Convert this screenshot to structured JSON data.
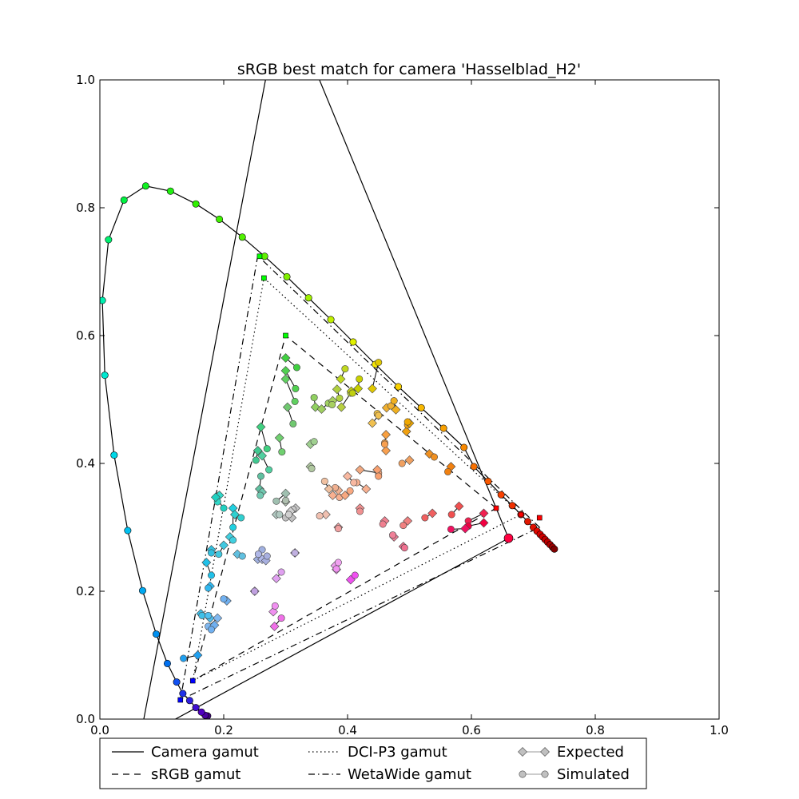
{
  "chart_data": {
    "type": "scatter",
    "title": "sRGB best match for camera 'Hasselblad_H2'",
    "xlabel": "",
    "ylabel": "",
    "xlim": [
      0.0,
      1.0
    ],
    "ylim": [
      0.0,
      1.0
    ],
    "x_ticks": [
      {
        "value": 0.0,
        "label": "0.0"
      },
      {
        "value": 0.2,
        "label": "0.2"
      },
      {
        "value": 0.4,
        "label": "0.4"
      },
      {
        "value": 0.6,
        "label": "0.6"
      },
      {
        "value": 0.8,
        "label": "0.8"
      },
      {
        "value": 1.0,
        "label": "1.0"
      }
    ],
    "y_ticks": [
      {
        "value": 0.0,
        "label": "0.0"
      },
      {
        "value": 0.2,
        "label": "0.2"
      },
      {
        "value": 0.4,
        "label": "0.4"
      },
      {
        "value": 0.6,
        "label": "0.6"
      },
      {
        "value": 0.8,
        "label": "0.8"
      },
      {
        "value": 1.0,
        "label": "1.0"
      }
    ],
    "grid": false,
    "legend_position": "bottom",
    "legend": [
      {
        "label": "Camera gamut",
        "style": "solid"
      },
      {
        "label": "sRGB gamut",
        "style": "dashed"
      },
      {
        "label": "DCI-P3 gamut",
        "style": "dotted"
      },
      {
        "label": "WetaWide gamut",
        "style": "dashdot"
      },
      {
        "label": "Expected",
        "style": "diamond-marker"
      },
      {
        "label": "Simulated",
        "style": "circle-marker"
      }
    ],
    "spectral_locus": [
      {
        "x": 0.174,
        "y": 0.005,
        "c": "#400080"
      },
      {
        "x": 0.17,
        "y": 0.006,
        "c": "#4a00a0"
      },
      {
        "x": 0.164,
        "y": 0.011,
        "c": "#5000c0"
      },
      {
        "x": 0.155,
        "y": 0.018,
        "c": "#4010d0"
      },
      {
        "x": 0.145,
        "y": 0.029,
        "c": "#3020e0"
      },
      {
        "x": 0.134,
        "y": 0.04,
        "c": "#2030e8"
      },
      {
        "x": 0.124,
        "y": 0.058,
        "c": "#1050f0"
      },
      {
        "x": 0.109,
        "y": 0.087,
        "c": "#0070f0"
      },
      {
        "x": 0.091,
        "y": 0.133,
        "c": "#0090f0"
      },
      {
        "x": 0.069,
        "y": 0.201,
        "c": "#00a8f0"
      },
      {
        "x": 0.045,
        "y": 0.295,
        "c": "#00c0f0"
      },
      {
        "x": 0.023,
        "y": 0.413,
        "c": "#00d8e8"
      },
      {
        "x": 0.008,
        "y": 0.538,
        "c": "#00e8d0"
      },
      {
        "x": 0.004,
        "y": 0.655,
        "c": "#00f0b0"
      },
      {
        "x": 0.014,
        "y": 0.75,
        "c": "#00f070"
      },
      {
        "x": 0.039,
        "y": 0.812,
        "c": "#00f040"
      },
      {
        "x": 0.074,
        "y": 0.834,
        "c": "#10f020"
      },
      {
        "x": 0.114,
        "y": 0.826,
        "c": "#20f010"
      },
      {
        "x": 0.155,
        "y": 0.806,
        "c": "#30f000"
      },
      {
        "x": 0.193,
        "y": 0.782,
        "c": "#40f000"
      },
      {
        "x": 0.23,
        "y": 0.754,
        "c": "#50f000"
      },
      {
        "x": 0.266,
        "y": 0.724,
        "c": "#60f000"
      },
      {
        "x": 0.302,
        "y": 0.692,
        "c": "#80f000"
      },
      {
        "x": 0.337,
        "y": 0.659,
        "c": "#a0f000"
      },
      {
        "x": 0.373,
        "y": 0.625,
        "c": "#c0f000"
      },
      {
        "x": 0.409,
        "y": 0.59,
        "c": "#e0f000"
      },
      {
        "x": 0.445,
        "y": 0.555,
        "c": "#f8e800"
      },
      {
        "x": 0.482,
        "y": 0.52,
        "c": "#f8d000"
      },
      {
        "x": 0.519,
        "y": 0.487,
        "c": "#f8b800"
      },
      {
        "x": 0.555,
        "y": 0.455,
        "c": "#f8a000"
      },
      {
        "x": 0.588,
        "y": 0.425,
        "c": "#f88800"
      },
      {
        "x": 0.604,
        "y": 0.395,
        "c": "#f87000"
      },
      {
        "x": 0.627,
        "y": 0.372,
        "c": "#f85800"
      },
      {
        "x": 0.648,
        "y": 0.351,
        "c": "#f84000"
      },
      {
        "x": 0.666,
        "y": 0.334,
        "c": "#f03000"
      },
      {
        "x": 0.68,
        "y": 0.32,
        "c": "#e82000"
      },
      {
        "x": 0.691,
        "y": 0.309,
        "c": "#e01800"
      },
      {
        "x": 0.7,
        "y": 0.3,
        "c": "#e01000"
      },
      {
        "x": 0.706,
        "y": 0.294,
        "c": "#e00800"
      },
      {
        "x": 0.711,
        "y": 0.289,
        "c": "#d80000"
      },
      {
        "x": 0.715,
        "y": 0.285,
        "c": "#d00000"
      },
      {
        "x": 0.719,
        "y": 0.281,
        "c": "#c80000"
      },
      {
        "x": 0.723,
        "y": 0.277,
        "c": "#c00000"
      },
      {
        "x": 0.727,
        "y": 0.273,
        "c": "#b00000"
      },
      {
        "x": 0.731,
        "y": 0.269,
        "c": "#a00000"
      },
      {
        "x": 0.734,
        "y": 0.266,
        "c": "#800000"
      }
    ],
    "camera_gamut": [
      [
        0.66,
        0.283
      ],
      [
        0.295,
        1.14
      ],
      [
        0.065,
        -0.03
      ]
    ],
    "srgb_gamut": [
      [
        0.64,
        0.33
      ],
      [
        0.3,
        0.6
      ],
      [
        0.15,
        0.06
      ]
    ],
    "dcip3_gamut": [
      [
        0.68,
        0.32
      ],
      [
        0.265,
        0.69
      ],
      [
        0.15,
        0.06
      ]
    ],
    "wetawide_gamut": [
      [
        0.71,
        0.3
      ],
      [
        0.255,
        0.725
      ],
      [
        0.13,
        0.03
      ]
    ],
    "primary_markers": [
      {
        "x": 0.64,
        "y": 0.33,
        "c": "#ff0000"
      },
      {
        "x": 0.3,
        "y": 0.6,
        "c": "#00ff00"
      },
      {
        "x": 0.15,
        "y": 0.06,
        "c": "#0000ff"
      },
      {
        "x": 0.68,
        "y": 0.32,
        "c": "#ff0000"
      },
      {
        "x": 0.265,
        "y": 0.69,
        "c": "#00ff00"
      },
      {
        "x": 0.71,
        "y": 0.315,
        "c": "#ff0000"
      },
      {
        "x": 0.258,
        "y": 0.724,
        "c": "#00ff00"
      },
      {
        "x": 0.13,
        "y": 0.03,
        "c": "#0000ff"
      }
    ],
    "camera_red_primary": {
      "x": 0.66,
      "y": 0.283,
      "c": "#ff0040"
    },
    "pairs": [
      {
        "ex": 0.3,
        "ey": 0.565,
        "sx": 0.318,
        "sy": 0.55,
        "c": "#40d040"
      },
      {
        "ex": 0.3,
        "ey": 0.545,
        "sx": 0.316,
        "sy": 0.517,
        "c": "#50d050"
      },
      {
        "ex": 0.3,
        "ey": 0.532,
        "sx": 0.315,
        "sy": 0.497,
        "c": "#60d060"
      },
      {
        "ex": 0.303,
        "ey": 0.488,
        "sx": 0.312,
        "sy": 0.462,
        "c": "#70c870"
      },
      {
        "ex": 0.348,
        "ey": 0.488,
        "sx": 0.346,
        "sy": 0.503,
        "c": "#90d060"
      },
      {
        "ex": 0.358,
        "ey": 0.485,
        "sx": 0.369,
        "sy": 0.494,
        "c": "#a0d060"
      },
      {
        "ex": 0.376,
        "ey": 0.498,
        "sx": 0.375,
        "sy": 0.492,
        "c": "#a8d060"
      },
      {
        "ex": 0.383,
        "ey": 0.516,
        "sx": 0.387,
        "sy": 0.502,
        "c": "#b0d040"
      },
      {
        "ex": 0.389,
        "ey": 0.532,
        "sx": 0.396,
        "sy": 0.548,
        "c": "#c0d820"
      },
      {
        "ex": 0.39,
        "ey": 0.488,
        "sx": 0.405,
        "sy": 0.51,
        "c": "#b8d040"
      },
      {
        "ex": 0.417,
        "ey": 0.517,
        "sx": 0.419,
        "sy": 0.532,
        "c": "#c8d000"
      },
      {
        "ex": 0.406,
        "ey": 0.513,
        "sx": 0.408,
        "sy": 0.51,
        "c": "#c0d010"
      },
      {
        "ex": 0.44,
        "ey": 0.517,
        "sx": 0.45,
        "sy": 0.558,
        "c": "#e0c800"
      },
      {
        "ex": 0.45,
        "ey": 0.475,
        "sx": 0.448,
        "sy": 0.478,
        "c": "#f0c040"
      },
      {
        "ex": 0.463,
        "ey": 0.487,
        "sx": 0.47,
        "sy": 0.49,
        "c": "#f0b030"
      },
      {
        "ex": 0.478,
        "ey": 0.484,
        "sx": 0.475,
        "sy": 0.498,
        "c": "#f0b020"
      },
      {
        "ex": 0.44,
        "ey": 0.463,
        "sx": 0.45,
        "sy": 0.475,
        "c": "#f0c050"
      },
      {
        "ex": 0.495,
        "ey": 0.45,
        "sx": 0.497,
        "sy": 0.46,
        "c": "#f0a010"
      },
      {
        "ex": 0.5,
        "ey": 0.463,
        "sx": 0.497,
        "sy": 0.465,
        "c": "#f0a800"
      },
      {
        "ex": 0.462,
        "ey": 0.445,
        "sx": 0.46,
        "sy": 0.432,
        "c": "#f8a040"
      },
      {
        "ex": 0.462,
        "ey": 0.42,
        "sx": 0.46,
        "sy": 0.43,
        "c": "#f8a050"
      },
      {
        "ex": 0.5,
        "ey": 0.405,
        "sx": 0.488,
        "sy": 0.4,
        "c": "#f0a060"
      },
      {
        "ex": 0.532,
        "ey": 0.415,
        "sx": 0.54,
        "sy": 0.41,
        "c": "#f09020"
      },
      {
        "ex": 0.567,
        "ey": 0.395,
        "sx": 0.562,
        "sy": 0.387,
        "c": "#f08010"
      },
      {
        "ex": 0.42,
        "ey": 0.39,
        "sx": 0.45,
        "sy": 0.385,
        "c": "#f0a880"
      },
      {
        "ex": 0.448,
        "ey": 0.39,
        "sx": 0.45,
        "sy": 0.38,
        "c": "#f8a070"
      },
      {
        "ex": 0.43,
        "ey": 0.36,
        "sx": 0.415,
        "sy": 0.37,
        "c": "#f8b090"
      },
      {
        "ex": 0.4,
        "ey": 0.38,
        "sx": 0.41,
        "sy": 0.37,
        "c": "#f8b8a0"
      },
      {
        "ex": 0.385,
        "ey": 0.358,
        "sx": 0.38,
        "sy": 0.362,
        "c": "#f0b090"
      },
      {
        "ex": 0.37,
        "ey": 0.36,
        "sx": 0.363,
        "sy": 0.372,
        "c": "#f0c0a0"
      },
      {
        "ex": 0.376,
        "ey": 0.35,
        "sx": 0.387,
        "sy": 0.347,
        "c": "#f8b090"
      },
      {
        "ex": 0.396,
        "ey": 0.35,
        "sx": 0.404,
        "sy": 0.357,
        "c": "#f8a880"
      },
      {
        "ex": 0.42,
        "ey": 0.33,
        "sx": 0.42,
        "sy": 0.325,
        "c": "#f09090"
      },
      {
        "ex": 0.365,
        "ey": 0.32,
        "sx": 0.355,
        "sy": 0.318,
        "c": "#f0c0b0"
      },
      {
        "ex": 0.385,
        "ey": 0.3,
        "sx": 0.385,
        "sy": 0.298,
        "c": "#f0a0a0"
      },
      {
        "ex": 0.46,
        "ey": 0.31,
        "sx": 0.457,
        "sy": 0.305,
        "c": "#f08090"
      },
      {
        "ex": 0.475,
        "ey": 0.285,
        "sx": 0.473,
        "sy": 0.288,
        "c": "#f08098"
      },
      {
        "ex": 0.49,
        "ey": 0.27,
        "sx": 0.492,
        "sy": 0.268,
        "c": "#f07090"
      },
      {
        "ex": 0.497,
        "ey": 0.31,
        "sx": 0.49,
        "sy": 0.303,
        "c": "#f08080"
      },
      {
        "ex": 0.537,
        "ey": 0.322,
        "sx": 0.525,
        "sy": 0.315,
        "c": "#f06060"
      },
      {
        "ex": 0.58,
        "ey": 0.333,
        "sx": 0.568,
        "sy": 0.32,
        "c": "#f05050"
      },
      {
        "ex": 0.62,
        "ey": 0.322,
        "sx": 0.595,
        "sy": 0.31,
        "c": "#f02050"
      },
      {
        "ex": 0.62,
        "ey": 0.307,
        "sx": 0.595,
        "sy": 0.302,
        "c": "#f00040"
      },
      {
        "ex": 0.59,
        "ey": 0.298,
        "sx": 0.567,
        "sy": 0.297,
        "c": "#f01060"
      },
      {
        "ex": 0.34,
        "ey": 0.43,
        "sx": 0.346,
        "sy": 0.434,
        "c": "#a0d090"
      },
      {
        "ex": 0.34,
        "ey": 0.395,
        "sx": 0.342,
        "sy": 0.392,
        "c": "#b0c8a0"
      },
      {
        "ex": 0.29,
        "ey": 0.44,
        "sx": 0.294,
        "sy": 0.418,
        "c": "#70d070"
      },
      {
        "ex": 0.26,
        "ey": 0.457,
        "sx": 0.27,
        "sy": 0.423,
        "c": "#40d080"
      },
      {
        "ex": 0.262,
        "ey": 0.412,
        "sx": 0.273,
        "sy": 0.39,
        "c": "#50d0a0"
      },
      {
        "ex": 0.255,
        "ey": 0.42,
        "sx": 0.252,
        "sy": 0.405,
        "c": "#40c890"
      },
      {
        "ex": 0.258,
        "ey": 0.36,
        "sx": 0.26,
        "sy": 0.38,
        "c": "#60c0a0"
      },
      {
        "ex": 0.262,
        "ey": 0.355,
        "sx": 0.259,
        "sy": 0.35,
        "c": "#70c8b0"
      },
      {
        "ex": 0.3,
        "ey": 0.353,
        "sx": 0.285,
        "sy": 0.341,
        "c": "#a0c0b0"
      },
      {
        "ex": 0.3,
        "ey": 0.34,
        "sx": 0.3,
        "sy": 0.342,
        "c": "#b0c0b0"
      },
      {
        "ex": 0.31,
        "ey": 0.315,
        "sx": 0.3,
        "sy": 0.315,
        "c": "#c0c0c0"
      },
      {
        "ex": 0.316,
        "ey": 0.33,
        "sx": 0.312,
        "sy": 0.328,
        "c": "#c8c8c8"
      },
      {
        "ex": 0.285,
        "ey": 0.32,
        "sx": 0.29,
        "sy": 0.32,
        "c": "#b0c8c0"
      },
      {
        "ex": 0.308,
        "ey": 0.325,
        "sx": 0.305,
        "sy": 0.32,
        "c": "#d0d0d0"
      },
      {
        "ex": 0.315,
        "ey": 0.26,
        "sx": 0.315,
        "sy": 0.26,
        "c": "#c0b0e0"
      },
      {
        "ex": 0.255,
        "ey": 0.25,
        "sx": 0.262,
        "sy": 0.265,
        "c": "#a0b0e0"
      },
      {
        "ex": 0.262,
        "ey": 0.25,
        "sx": 0.256,
        "sy": 0.258,
        "c": "#b0b8e8"
      },
      {
        "ex": 0.268,
        "ey": 0.248,
        "sx": 0.27,
        "sy": 0.255,
        "c": "#a8b0e0"
      },
      {
        "ex": 0.25,
        "ey": 0.2,
        "sx": 0.25,
        "sy": 0.2,
        "c": "#c0a0e0"
      },
      {
        "ex": 0.285,
        "ey": 0.22,
        "sx": 0.293,
        "sy": 0.23,
        "c": "#e0a0f0"
      },
      {
        "ex": 0.28,
        "ey": 0.168,
        "sx": 0.283,
        "sy": 0.177,
        "c": "#f090f0"
      },
      {
        "ex": 0.282,
        "ey": 0.145,
        "sx": 0.293,
        "sy": 0.158,
        "c": "#f070e8"
      },
      {
        "ex": 0.38,
        "ey": 0.24,
        "sx": 0.385,
        "sy": 0.245,
        "c": "#f0a0f0"
      },
      {
        "ex": 0.382,
        "ey": 0.234,
        "sx": 0.382,
        "sy": 0.235,
        "c": "#f090f0"
      },
      {
        "ex": 0.405,
        "ey": 0.218,
        "sx": 0.412,
        "sy": 0.225,
        "c": "#f050f0"
      },
      {
        "ex": 0.193,
        "ey": 0.35,
        "sx": 0.19,
        "sy": 0.34,
        "c": "#30d8c8"
      },
      {
        "ex": 0.187,
        "ey": 0.347,
        "sx": 0.2,
        "sy": 0.33,
        "c": "#20d0c0"
      },
      {
        "ex": 0.215,
        "ey": 0.33,
        "sx": 0.215,
        "sy": 0.3,
        "c": "#20d0e0"
      },
      {
        "ex": 0.218,
        "ey": 0.32,
        "sx": 0.228,
        "sy": 0.315,
        "c": "#30d0d0"
      },
      {
        "ex": 0.21,
        "ey": 0.285,
        "sx": 0.215,
        "sy": 0.28,
        "c": "#40d0e0"
      },
      {
        "ex": 0.2,
        "ey": 0.272,
        "sx": 0.192,
        "sy": 0.258,
        "c": "#40c8e0"
      },
      {
        "ex": 0.18,
        "ey": 0.265,
        "sx": 0.18,
        "sy": 0.26,
        "c": "#30c0e0"
      },
      {
        "ex": 0.222,
        "ey": 0.258,
        "sx": 0.23,
        "sy": 0.255,
        "c": "#60c0e0"
      },
      {
        "ex": 0.172,
        "ey": 0.245,
        "sx": 0.18,
        "sy": 0.225,
        "c": "#20c0e8"
      },
      {
        "ex": 0.178,
        "ey": 0.208,
        "sx": 0.175,
        "sy": 0.205,
        "c": "#30b8f0"
      },
      {
        "ex": 0.205,
        "ey": 0.185,
        "sx": 0.2,
        "sy": 0.188,
        "c": "#70b0f0"
      },
      {
        "ex": 0.163,
        "ey": 0.165,
        "sx": 0.165,
        "sy": 0.162,
        "c": "#40c0e8"
      },
      {
        "ex": 0.178,
        "ey": 0.158,
        "sx": 0.175,
        "sy": 0.162,
        "c": "#50c0f0"
      },
      {
        "ex": 0.19,
        "ey": 0.158,
        "sx": 0.175,
        "sy": 0.145,
        "c": "#80b8f0"
      },
      {
        "ex": 0.185,
        "ey": 0.147,
        "sx": 0.18,
        "sy": 0.14,
        "c": "#70b0f0"
      },
      {
        "ex": 0.158,
        "ey": 0.1,
        "sx": 0.135,
        "sy": 0.095,
        "c": "#20a0f0"
      }
    ]
  }
}
